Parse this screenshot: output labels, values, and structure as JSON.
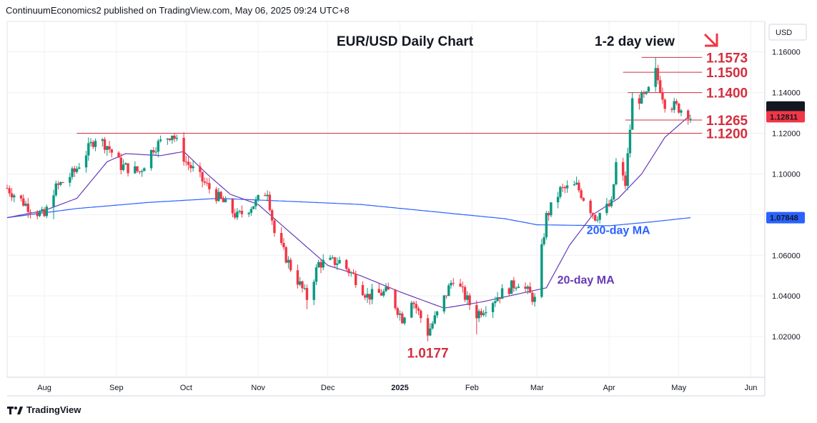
{
  "publisher": "ContinuumEconomics2 published on TradingView.com, May 06, 2025 09:24 UTC+8",
  "footer_brand": "TradingView",
  "logo_icon": "tradingview-logo-icon",
  "colors": {
    "up": "#089981",
    "down": "#f23645",
    "level": "#d32f3f",
    "ma20": "#673ab7",
    "ma200": "#2962ff",
    "arrow": "#f23645",
    "grid": "#eef0f3"
  },
  "chart_data": {
    "type": "candlestick",
    "title": "EUR/USD Daily Chart",
    "view_label": "1-2 day view",
    "view_direction_icon": "arrow-down-right-icon",
    "currency": "USD",
    "ylim": [
      1.0,
      1.175
    ],
    "yticks": [
      "1.02000",
      "1.04000",
      "1.06000",
      "1.08000",
      "1.10000",
      "1.12000",
      "1.14000",
      "1.16000"
    ],
    "xticks": [
      {
        "label": "Aug",
        "date": "2024-08-01"
      },
      {
        "label": "Sep",
        "date": "2024-09-01"
      },
      {
        "label": "Oct",
        "date": "2024-10-01"
      },
      {
        "label": "Nov",
        "date": "2024-11-01"
      },
      {
        "label": "Dec",
        "date": "2024-12-01"
      },
      {
        "label": "2025",
        "date": "2025-01-01"
      },
      {
        "label": "Feb",
        "date": "2025-02-01"
      },
      {
        "label": "Mar",
        "date": "2025-03-01"
      },
      {
        "label": "Apr",
        "date": "2025-04-01"
      },
      {
        "label": "May",
        "date": "2025-05-01"
      },
      {
        "label": "Jun",
        "date": "2025-06-01"
      }
    ],
    "xlim": [
      "2024-07-16",
      "2025-06-07"
    ],
    "price_labels": [
      {
        "value": "1.13292",
        "price": 1.13292,
        "color": "#131722"
      },
      {
        "value": "1.12811",
        "price": 1.12811,
        "color": "#f23645"
      },
      {
        "value": "1.07848",
        "price": 1.07848,
        "color": "#2962ff"
      }
    ],
    "levels": [
      {
        "label": "1.1573",
        "price": 1.1573,
        "from": "2025-04-15"
      },
      {
        "label": "1.1500",
        "price": 1.15,
        "from": "2025-04-07"
      },
      {
        "label": "1.1400",
        "price": 1.14,
        "from": "2025-04-09"
      },
      {
        "label": "1.1265",
        "price": 1.1265,
        "from": "2025-04-08"
      },
      {
        "label": "1.1200",
        "price": 1.12,
        "from": "2024-08-15"
      }
    ],
    "annotations": [
      {
        "label": "1.0177",
        "date": "2025-01-13",
        "price": 1.0177
      },
      {
        "label": "200-day MA",
        "date": "2025-04-05",
        "price": 1.0705
      },
      {
        "label": "20-day MA",
        "date": "2025-03-22",
        "price": 1.046
      }
    ],
    "anchors": [
      [
        "2024-07-16",
        1.093
      ],
      [
        "2024-07-25",
        1.084
      ],
      [
        "2024-08-01",
        1.079
      ],
      [
        "2024-08-05",
        1.092
      ],
      [
        "2024-08-14",
        1.101
      ],
      [
        "2024-08-23",
        1.118
      ],
      [
        "2024-08-28",
        1.114
      ],
      [
        "2024-09-03",
        1.104
      ],
      [
        "2024-09-11",
        1.101
      ],
      [
        "2024-09-17",
        1.113
      ],
      [
        "2024-09-25",
        1.12
      ],
      [
        "2024-10-01",
        1.106
      ],
      [
        "2024-10-10",
        1.094
      ],
      [
        "2024-10-23",
        1.079
      ],
      [
        "2024-10-31",
        1.086
      ],
      [
        "2024-11-05",
        1.092
      ],
      [
        "2024-11-08",
        1.071
      ],
      [
        "2024-11-15",
        1.054
      ],
      [
        "2024-11-22",
        1.039
      ],
      [
        "2024-11-27",
        1.056
      ],
      [
        "2024-12-06",
        1.057
      ],
      [
        "2024-12-12",
        1.05
      ],
      [
        "2024-12-18",
        1.04
      ],
      [
        "2024-12-27",
        1.042
      ],
      [
        "2025-01-02",
        1.029
      ],
      [
        "2025-01-06",
        1.039
      ],
      [
        "2025-01-13",
        1.022
      ],
      [
        "2025-01-17",
        1.031
      ],
      [
        "2025-01-24",
        1.049
      ],
      [
        "2025-01-31",
        1.036
      ],
      [
        "2025-02-03",
        1.031
      ],
      [
        "2025-02-12",
        1.04
      ],
      [
        "2025-02-21",
        1.047
      ],
      [
        "2025-02-28",
        1.038
      ],
      [
        "2025-03-05",
        1.079
      ],
      [
        "2025-03-11",
        1.092
      ],
      [
        "2025-03-18",
        1.094
      ],
      [
        "2025-03-26",
        1.079
      ],
      [
        "2025-04-02",
        1.085
      ],
      [
        "2025-04-04",
        1.105
      ],
      [
        "2025-04-08",
        1.095
      ],
      [
        "2025-04-11",
        1.136
      ],
      [
        "2025-04-17",
        1.138
      ],
      [
        "2025-04-21",
        1.15
      ],
      [
        "2025-04-25",
        1.135
      ],
      [
        "2025-04-30",
        1.133
      ],
      [
        "2025-05-05",
        1.13
      ],
      [
        "2025-05-06",
        1.128
      ]
    ],
    "extremes": [
      {
        "date": "2024-08-05",
        "side": "low",
        "price": 1.0777
      },
      {
        "date": "2024-11-22",
        "side": "low",
        "price": 1.0335
      },
      {
        "date": "2025-01-13",
        "side": "low",
        "price": 1.0177
      },
      {
        "date": "2025-02-03",
        "side": "low",
        "price": 1.0211
      },
      {
        "date": "2025-04-21",
        "side": "high",
        "price": 1.1573
      }
    ],
    "ma20_anchors": [
      [
        "2024-07-16",
        1.0785
      ],
      [
        "2024-08-01",
        1.082
      ],
      [
        "2024-08-15",
        1.088
      ],
      [
        "2024-08-28",
        1.106
      ],
      [
        "2024-09-05",
        1.11
      ],
      [
        "2024-09-20",
        1.109
      ],
      [
        "2024-09-30",
        1.111
      ],
      [
        "2024-10-10",
        1.1
      ],
      [
        "2024-10-20",
        1.09
      ],
      [
        "2024-11-01",
        1.085
      ],
      [
        "2024-11-15",
        1.071
      ],
      [
        "2024-12-01",
        1.055
      ],
      [
        "2024-12-15",
        1.05
      ],
      [
        "2025-01-01",
        1.042
      ],
      [
        "2025-01-20",
        1.034
      ],
      [
        "2025-02-05",
        1.037
      ],
      [
        "2025-02-25",
        1.042
      ],
      [
        "2025-03-05",
        1.044
      ],
      [
        "2025-03-15",
        1.065
      ],
      [
        "2025-03-25",
        1.08
      ],
      [
        "2025-04-05",
        1.088
      ],
      [
        "2025-04-15",
        1.1
      ],
      [
        "2025-04-25",
        1.118
      ],
      [
        "2025-05-06",
        1.129
      ]
    ],
    "ma200_anchors": [
      [
        "2024-07-16",
        1.0785
      ],
      [
        "2024-08-15",
        1.083
      ],
      [
        "2024-09-15",
        1.086
      ],
      [
        "2024-10-15",
        1.088
      ],
      [
        "2024-11-15",
        1.0865
      ],
      [
        "2024-12-15",
        1.085
      ],
      [
        "2025-01-15",
        1.0815
      ],
      [
        "2025-02-15",
        1.078
      ],
      [
        "2025-03-01",
        1.075
      ],
      [
        "2025-04-01",
        1.0745
      ],
      [
        "2025-04-20",
        1.0765
      ],
      [
        "2025-05-06",
        1.0785
      ]
    ]
  }
}
